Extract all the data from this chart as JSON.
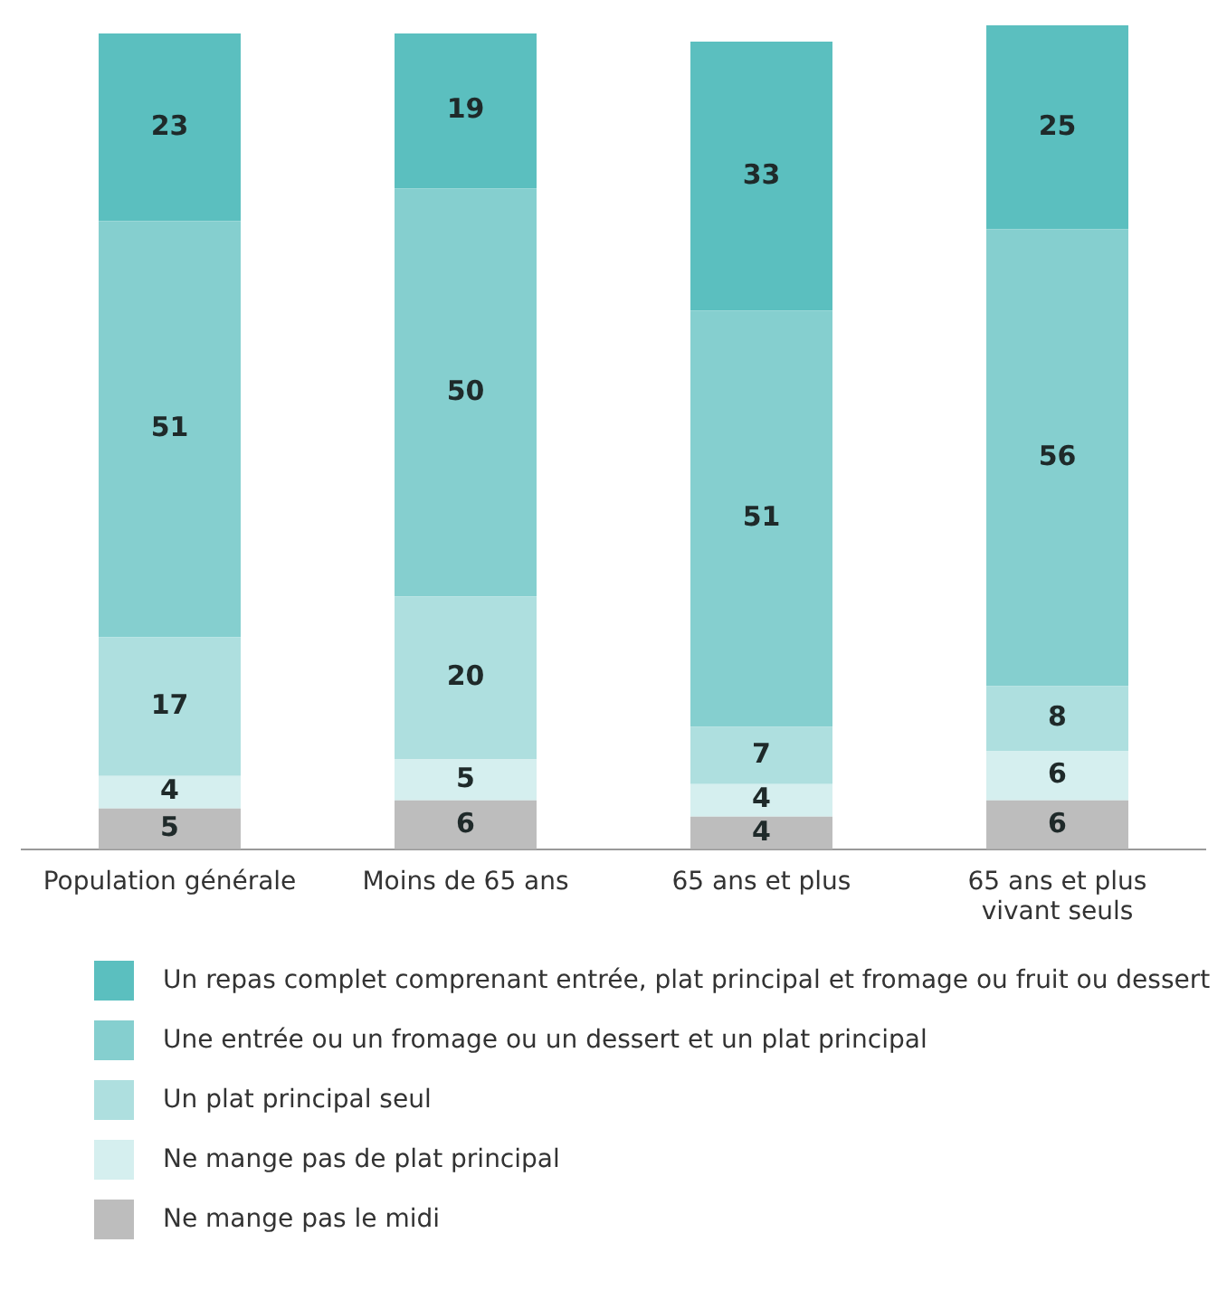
{
  "chart_data": {
    "type": "bar",
    "stacked": true,
    "data_labels": true,
    "legend": "bottom",
    "grid": false,
    "categories": [
      "Population générale",
      "Moins de 65 ans",
      "65 ans et plus",
      "65 ans et plus vivant seuls"
    ],
    "series": [
      {
        "name": "Ne mange pas le midi",
        "color": "#bdbdbd",
        "values": [
          5,
          6,
          4,
          6
        ]
      },
      {
        "name": "Ne mange pas de plat principal",
        "color": "#d5efef",
        "values": [
          4,
          5,
          4,
          6
        ]
      },
      {
        "name": "Un plat principal seul",
        "color": "#aedfdf",
        "values": [
          17,
          20,
          7,
          8
        ]
      },
      {
        "name": "Une entrée ou un fromage ou un dessert et un plat principal",
        "color": "#85cfcf",
        "values": [
          51,
          50,
          51,
          56
        ]
      },
      {
        "name": "Un repas complet comprenant entrée, plat principal et fromage ou fruit ou dessert",
        "color": "#5bbfbf",
        "values": [
          23,
          19,
          33,
          25
        ]
      }
    ]
  }
}
